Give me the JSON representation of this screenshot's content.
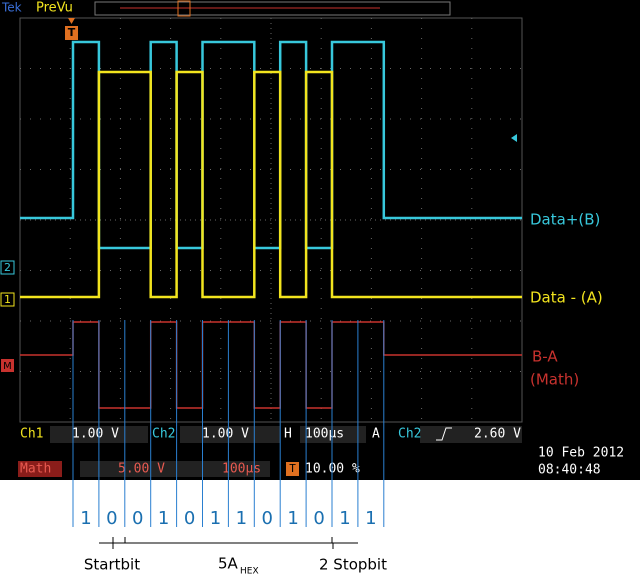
{
  "header": {
    "brand": "Tek",
    "mode": "PreVu"
  },
  "markers": {
    "trigger": "T",
    "ch2": "2",
    "ch1": "1",
    "math": "M"
  },
  "traces": [
    {
      "label": "Data+(B)",
      "color": "#38c8dc"
    },
    {
      "label": "Data - (A)",
      "color": "#f2e41e"
    },
    {
      "label": "B-A",
      "label2": "(Math)",
      "color": "#c8322e"
    }
  ],
  "status": {
    "row1": [
      "Ch1",
      "1.00 V",
      "Ch2",
      "1.00 V",
      "H",
      "100µs",
      "A",
      "Ch2",
      "2.60 V"
    ],
    "row2": [
      "Math",
      "5.00 V",
      "100µs",
      "10.00 %"
    ],
    "date": "10 Feb 2012",
    "time": "08:40:48"
  },
  "bits": [
    "1",
    "0",
    "0",
    "1",
    "0",
    "1",
    "1",
    "0",
    "1",
    "0",
    "1",
    "1"
  ],
  "groups": {
    "start": "Startbit",
    "data": "5A",
    "data_sub": "HEX",
    "stop": "2 Stopbit"
  }
}
